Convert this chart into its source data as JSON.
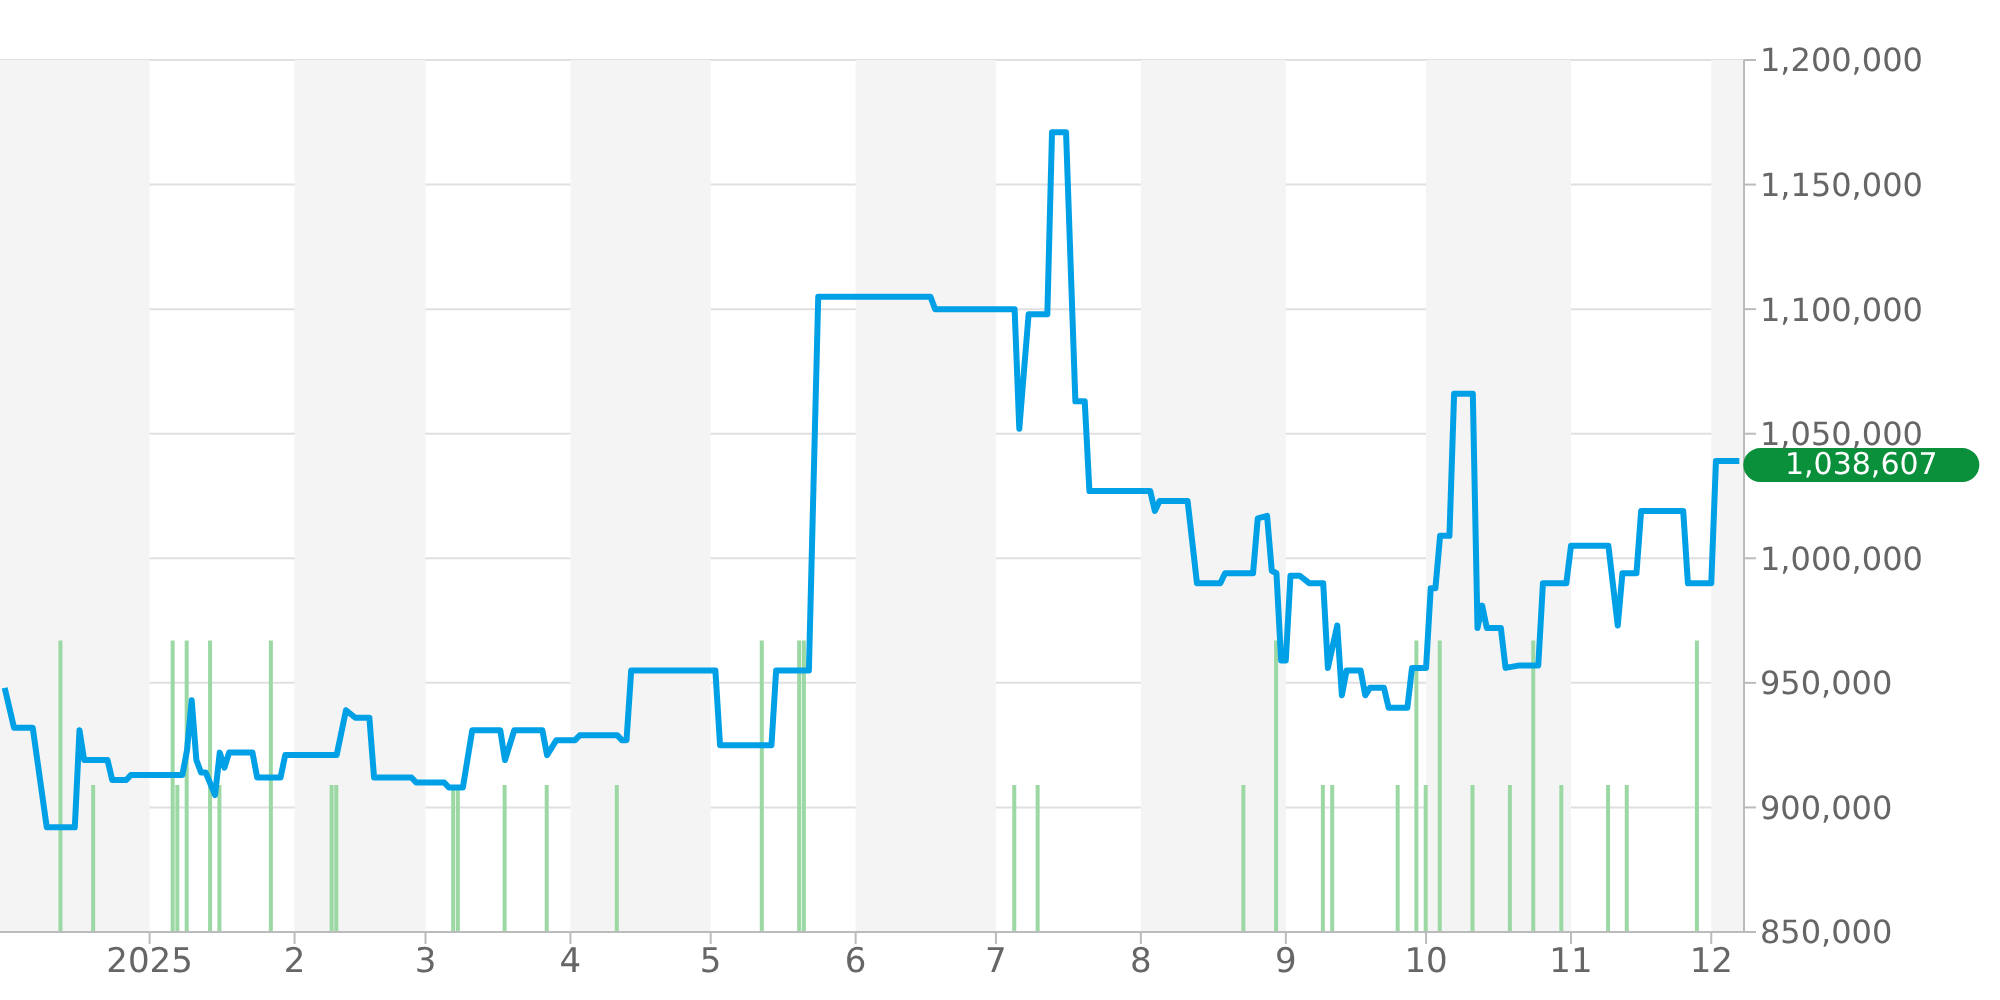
{
  "chart_data": {
    "type": "line",
    "marker": "none",
    "grid": "y",
    "xlim": [
      "2024-11-30",
      "2025-12-08"
    ],
    "xticks": [
      {
        "value": "2025-01-01",
        "label": "2025"
      },
      {
        "value": "2025-02-01",
        "label": "2"
      },
      {
        "value": "2025-03-01",
        "label": "3"
      },
      {
        "value": "2025-04-01",
        "label": "4"
      },
      {
        "value": "2025-05-01",
        "label": "5"
      },
      {
        "value": "2025-06-01",
        "label": "6"
      },
      {
        "value": "2025-07-01",
        "label": "7"
      },
      {
        "value": "2025-08-01",
        "label": "8"
      },
      {
        "value": "2025-09-01",
        "label": "9"
      },
      {
        "value": "2025-10-01",
        "label": "10"
      },
      {
        "value": "2025-11-01",
        "label": "11"
      },
      {
        "value": "2025-12-01",
        "label": "12"
      }
    ],
    "ylim": [
      850000,
      1200000
    ],
    "yticks": [
      {
        "value": 850000,
        "label": "850,000"
      },
      {
        "value": 900000,
        "label": "900,000"
      },
      {
        "value": 950000,
        "label": "950,000"
      },
      {
        "value": 1000000,
        "label": "1,000,000"
      },
      {
        "value": 1050000,
        "label": "1,050,000"
      },
      {
        "value": 1100000,
        "label": "1,100,000"
      },
      {
        "value": 1150000,
        "label": "1,150,000"
      },
      {
        "value": 1200000,
        "label": "1,200,000"
      }
    ],
    "bands": [
      {
        "axis": "x",
        "from": "2024-11-30",
        "to": "2025-01-01",
        "color": "#f4f4f4"
      },
      {
        "axis": "x",
        "from": "2025-02-01",
        "to": "2025-03-01",
        "color": "#f4f4f4"
      },
      {
        "axis": "x",
        "from": "2025-04-01",
        "to": "2025-05-01",
        "color": "#f4f4f4"
      },
      {
        "axis": "x",
        "from": "2025-06-01",
        "to": "2025-07-01",
        "color": "#f4f4f4"
      },
      {
        "axis": "x",
        "from": "2025-08-01",
        "to": "2025-09-01",
        "color": "#f4f4f4"
      },
      {
        "axis": "x",
        "from": "2025-10-01",
        "to": "2025-11-01",
        "color": "#f4f4f4"
      },
      {
        "axis": "x",
        "from": "2025-12-01",
        "to": "2025-12-08",
        "color": "#f4f4f4"
      }
    ],
    "annotations": [
      {
        "text": "1,038,607",
        "x": "2025-12-07",
        "y": 1038607
      }
    ],
    "series": [
      {
        "type": "bar",
        "color": "#9bd8a4",
        "x": [
          "2024-12-13",
          "2024-12-20",
          "2025-01-06",
          "2025-01-07",
          "2025-01-09",
          "2025-01-14",
          "2025-01-16",
          "2025-01-27",
          "2025-02-09",
          "2025-02-10",
          "2025-03-07",
          "2025-03-08",
          "2025-03-18",
          "2025-03-27",
          "2025-04-11",
          "2025-05-12",
          "2025-05-20",
          "2025-05-21",
          "2025-07-05",
          "2025-07-10",
          "2025-08-23",
          "2025-08-30",
          "2025-09-09",
          "2025-09-11",
          "2025-09-25",
          "2025-09-29",
          "2025-10-01",
          "2025-10-04",
          "2025-10-11",
          "2025-10-19",
          "2025-10-24",
          "2025-10-30",
          "2025-11-09",
          "2025-11-13",
          "2025-11-28"
        ],
        "values": [
          967000,
          909000,
          967000,
          909000,
          967000,
          967000,
          909000,
          967000,
          909000,
          909000,
          909000,
          909000,
          909000,
          909000,
          909000,
          967000,
          967000,
          967000,
          909000,
          909000,
          909000,
          967000,
          909000,
          909000,
          909000,
          967000,
          909000,
          967000,
          909000,
          909000,
          967000,
          909000,
          909000,
          909000,
          967000
        ]
      },
      {
        "color": "#00a0e6",
        "x": [
          "2024-12-01",
          "2024-12-03",
          "2024-12-07",
          "2024-12-10",
          "2024-12-16",
          "2024-12-17",
          "2024-12-18",
          "2024-12-23",
          "2024-12-24",
          "2024-12-27",
          "2024-12-28",
          "2025-01-08",
          "2025-01-09",
          "2025-01-10",
          "2025-01-11",
          "2025-01-12",
          "2025-01-13",
          "2025-01-15",
          "2025-01-16",
          "2025-01-17",
          "2025-01-18",
          "2025-01-23",
          "2025-01-24",
          "2025-01-29",
          "2025-01-30",
          "2025-02-10",
          "2025-02-12",
          "2025-02-14",
          "2025-02-17",
          "2025-02-18",
          "2025-02-26",
          "2025-02-27",
          "2025-03-05",
          "2025-03-06",
          "2025-03-09",
          "2025-03-11",
          "2025-03-17",
          "2025-03-18",
          "2025-03-20",
          "2025-03-26",
          "2025-03-27",
          "2025-03-29",
          "2025-04-02",
          "2025-04-03",
          "2025-04-11",
          "2025-04-12",
          "2025-04-13",
          "2025-04-14",
          "2025-05-02",
          "2025-05-03",
          "2025-05-14",
          "2025-05-15",
          "2025-05-22",
          "2025-05-24",
          "2025-06-17",
          "2025-06-18",
          "2025-07-05",
          "2025-07-06",
          "2025-07-08",
          "2025-07-12",
          "2025-07-13",
          "2025-07-16",
          "2025-07-18",
          "2025-07-20",
          "2025-07-21",
          "2025-08-03",
          "2025-08-04",
          "2025-08-05",
          "2025-08-11",
          "2025-08-13",
          "2025-08-18",
          "2025-08-19",
          "2025-08-25",
          "2025-08-26",
          "2025-08-28",
          "2025-08-29",
          "2025-08-30",
          "2025-08-31",
          "2025-09-01",
          "2025-09-02",
          "2025-09-04",
          "2025-09-06",
          "2025-09-09",
          "2025-09-10",
          "2025-09-12",
          "2025-09-13",
          "2025-09-14",
          "2025-09-17",
          "2025-09-18",
          "2025-09-19",
          "2025-09-22",
          "2025-09-23",
          "2025-09-27",
          "2025-09-28",
          "2025-10-01",
          "2025-10-02",
          "2025-10-03",
          "2025-10-04",
          "2025-10-06",
          "2025-10-07",
          "2025-10-11",
          "2025-10-12",
          "2025-10-13",
          "2025-10-14",
          "2025-10-17",
          "2025-10-18",
          "2025-10-21",
          "2025-10-25",
          "2025-10-26",
          "2025-10-31",
          "2025-11-01",
          "2025-11-09",
          "2025-11-11",
          "2025-11-12",
          "2025-11-15",
          "2025-11-16",
          "2025-11-25",
          "2025-11-26",
          "2025-12-01",
          "2025-12-02",
          "2025-12-07"
        ],
        "values": [
          948000,
          932000,
          932000,
          892000,
          892000,
          931000,
          919000,
          919000,
          911000,
          911000,
          913000,
          913000,
          923000,
          943000,
          919000,
          914000,
          914000,
          905000,
          922000,
          916000,
          922000,
          922000,
          912000,
          912000,
          921000,
          921000,
          939000,
          936000,
          936000,
          912000,
          912000,
          910000,
          910000,
          908000,
          908000,
          931000,
          931000,
          919000,
          931000,
          931000,
          921000,
          927000,
          927000,
          929000,
          929000,
          927000,
          927000,
          955000,
          955000,
          925000,
          925000,
          955000,
          955000,
          1105000,
          1105000,
          1100000,
          1100000,
          1052000,
          1098000,
          1098000,
          1171000,
          1171000,
          1063000,
          1063000,
          1027000,
          1027000,
          1019000,
          1023000,
          1023000,
          990000,
          990000,
          994000,
          994000,
          1016000,
          1017000,
          995000,
          994000,
          959000,
          959000,
          993000,
          993000,
          990000,
          990000,
          956000,
          973000,
          945000,
          955000,
          955000,
          945000,
          948000,
          948000,
          940000,
          940000,
          956000,
          956000,
          988000,
          988000,
          1009000,
          1009000,
          1066000,
          1066000,
          972000,
          981000,
          972000,
          972000,
          956000,
          957000,
          957000,
          990000,
          990000,
          1005000,
          1005000,
          973000,
          994000,
          994000,
          1019000,
          1019000,
          990000,
          990000,
          1039000,
          1039000
        ]
      }
    ]
  }
}
